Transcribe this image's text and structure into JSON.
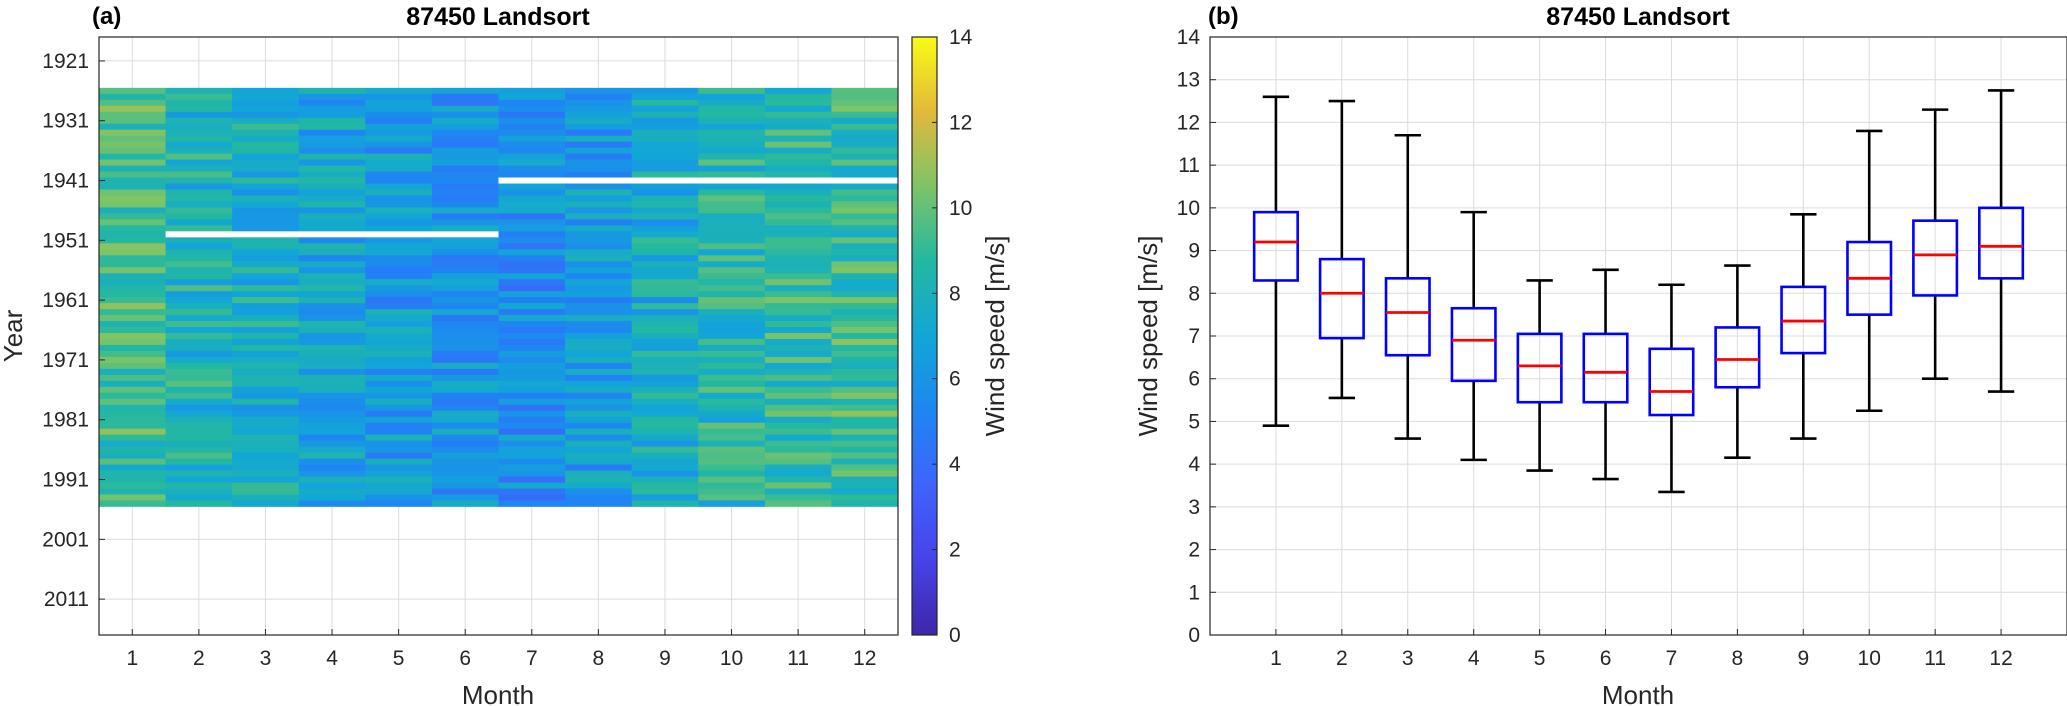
{
  "chart_data": [
    {
      "type": "heatmap",
      "panel_label": "(a)",
      "title": "87450 Landsort",
      "xlabel": "Month",
      "ylabel": "Year",
      "x_ticks": [
        "1",
        "2",
        "3",
        "4",
        "5",
        "6",
        "7",
        "8",
        "9",
        "10",
        "11",
        "12"
      ],
      "y_ticks": [
        "1921",
        "1931",
        "1941",
        "1951",
        "1961",
        "1971",
        "1981",
        "1991",
        "2001",
        "2011"
      ],
      "x_range": [
        0.5,
        12.5
      ],
      "y_range": [
        1917,
        2017
      ],
      "data_years": [
        1926,
        1995
      ],
      "colorbar": {
        "label": "Wind speed [m/s]",
        "range": [
          0,
          14
        ],
        "ticks": [
          "0",
          "2",
          "4",
          "6",
          "8",
          "10",
          "12",
          "14"
        ],
        "colormap": "parula"
      },
      "monthly_mean_wind_speed": [
        9.2,
        8.0,
        7.55,
        6.9,
        6.3,
        6.15,
        5.7,
        6.45,
        7.35,
        8.35,
        8.9,
        9.1
      ],
      "missing_data": [
        {
          "year": 1950,
          "months": [
            2,
            3,
            4,
            5,
            6
          ]
        },
        {
          "year": 1941,
          "months": [
            7,
            8,
            9,
            10,
            11,
            12
          ]
        }
      ],
      "grid": true
    },
    {
      "type": "box",
      "panel_label": "(b)",
      "title": "87450 Landsort",
      "xlabel": "Month",
      "ylabel": "Wind speed [m/s]",
      "categories": [
        "1",
        "2",
        "3",
        "4",
        "5",
        "6",
        "7",
        "8",
        "9",
        "10",
        "11",
        "12"
      ],
      "y_ticks": [
        "0",
        "1",
        "2",
        "3",
        "4",
        "5",
        "6",
        "7",
        "8",
        "9",
        "10",
        "11",
        "12",
        "13",
        "14"
      ],
      "ylim": [
        0,
        14
      ],
      "xlim": [
        0,
        13
      ],
      "grid": true,
      "box_color": "#0000ff",
      "median_color": "#ff0000",
      "whisker_color": "#000000",
      "boxes": [
        {
          "month": 1,
          "lower_whisker": 4.9,
          "q1": 8.3,
          "median": 9.2,
          "q3": 9.9,
          "upper_whisker": 12.6
        },
        {
          "month": 2,
          "lower_whisker": 5.55,
          "q1": 6.95,
          "median": 8.0,
          "q3": 8.8,
          "upper_whisker": 12.5
        },
        {
          "month": 3,
          "lower_whisker": 4.6,
          "q1": 6.55,
          "median": 7.55,
          "q3": 8.35,
          "upper_whisker": 11.7
        },
        {
          "month": 4,
          "lower_whisker": 4.1,
          "q1": 5.95,
          "median": 6.9,
          "q3": 7.65,
          "upper_whisker": 9.9
        },
        {
          "month": 5,
          "lower_whisker": 3.85,
          "q1": 5.45,
          "median": 6.3,
          "q3": 7.05,
          "upper_whisker": 8.3
        },
        {
          "month": 6,
          "lower_whisker": 3.65,
          "q1": 5.45,
          "median": 6.15,
          "q3": 7.05,
          "upper_whisker": 8.55
        },
        {
          "month": 7,
          "lower_whisker": 3.35,
          "q1": 5.15,
          "median": 5.7,
          "q3": 6.7,
          "upper_whisker": 8.2
        },
        {
          "month": 8,
          "lower_whisker": 4.15,
          "q1": 5.8,
          "median": 6.45,
          "q3": 7.2,
          "upper_whisker": 8.65
        },
        {
          "month": 9,
          "lower_whisker": 4.6,
          "q1": 6.6,
          "median": 7.35,
          "q3": 8.15,
          "upper_whisker": 9.85
        },
        {
          "month": 10,
          "lower_whisker": 5.25,
          "q1": 7.5,
          "median": 8.35,
          "q3": 9.2,
          "upper_whisker": 11.8
        },
        {
          "month": 11,
          "lower_whisker": 6.0,
          "q1": 7.95,
          "median": 8.9,
          "q3": 9.7,
          "upper_whisker": 12.3
        },
        {
          "month": 12,
          "lower_whisker": 5.7,
          "q1": 8.35,
          "median": 9.1,
          "q3": 10.0,
          "upper_whisker": 12.75
        }
      ]
    }
  ]
}
